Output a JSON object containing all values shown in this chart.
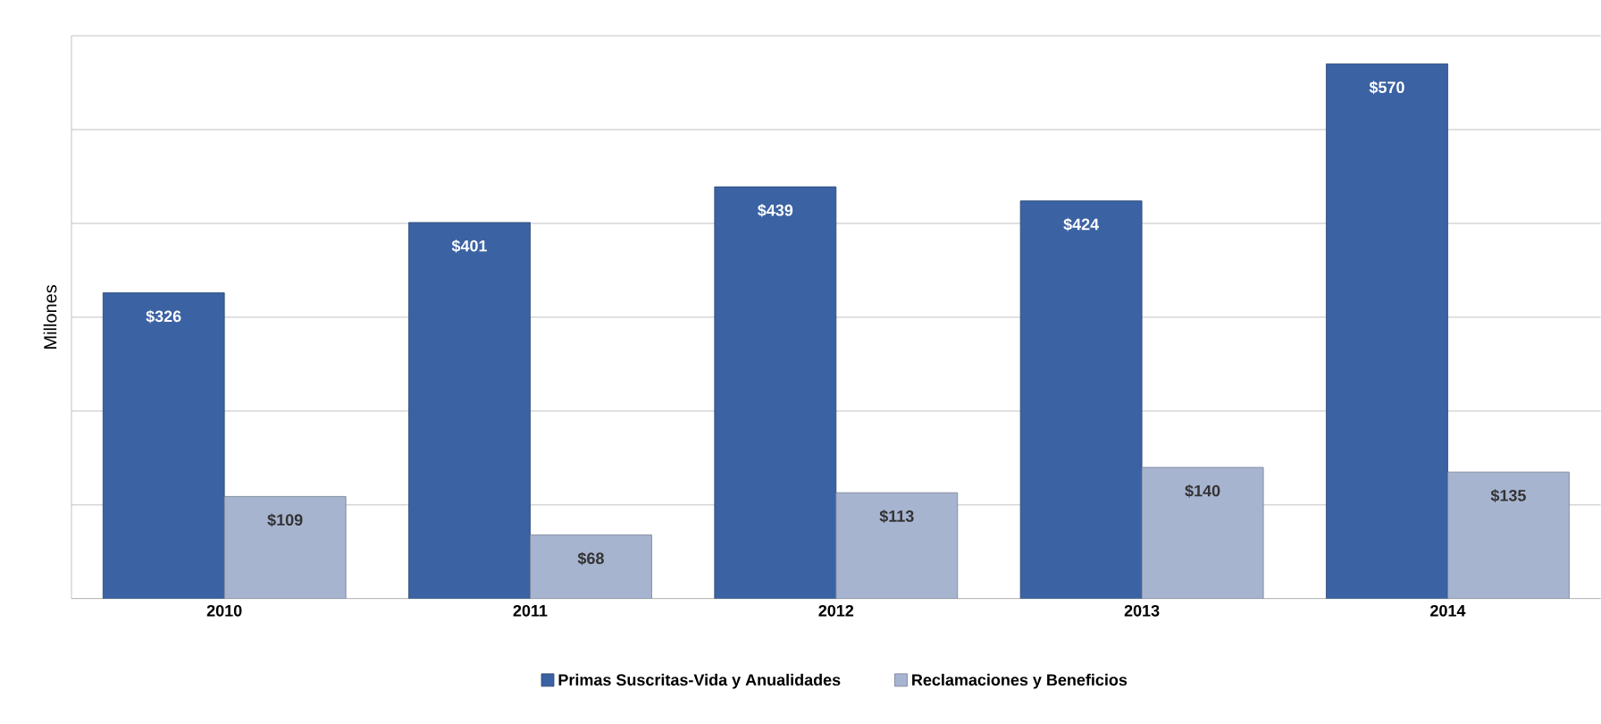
{
  "chart_data": {
    "type": "bar",
    "ylabel": "Millones",
    "categories": [
      "2010",
      "2011",
      "2012",
      "2013",
      "2014"
    ],
    "series": [
      {
        "name": "Primas Suscritas-Vida y Anualidades",
        "color": "#3b62a3",
        "values": [
          326,
          401,
          439,
          424,
          570
        ],
        "value_labels": [
          "$326",
          "$401",
          "$439",
          "$424",
          "$570"
        ]
      },
      {
        "name": "Reclamaciones y Beneficios",
        "color": "#a7b4d0",
        "values": [
          109,
          68,
          113,
          140,
          135
        ],
        "value_labels": [
          "$109",
          "$68",
          "$113",
          "$140",
          "$135"
        ]
      }
    ],
    "ylim": [
      0,
      600
    ],
    "yticks": [
      {
        "value": 0,
        "label": null
      },
      {
        "value": 100,
        "label": null
      },
      {
        "value": 200,
        "label": null
      },
      {
        "value": 300,
        "label": null
      },
      {
        "value": 400,
        "label": null
      },
      {
        "value": 500,
        "label": null
      },
      {
        "value": 600,
        "label": null
      }
    ],
    "tick_labels": "x",
    "grid": "y",
    "legend": "bottom"
  }
}
